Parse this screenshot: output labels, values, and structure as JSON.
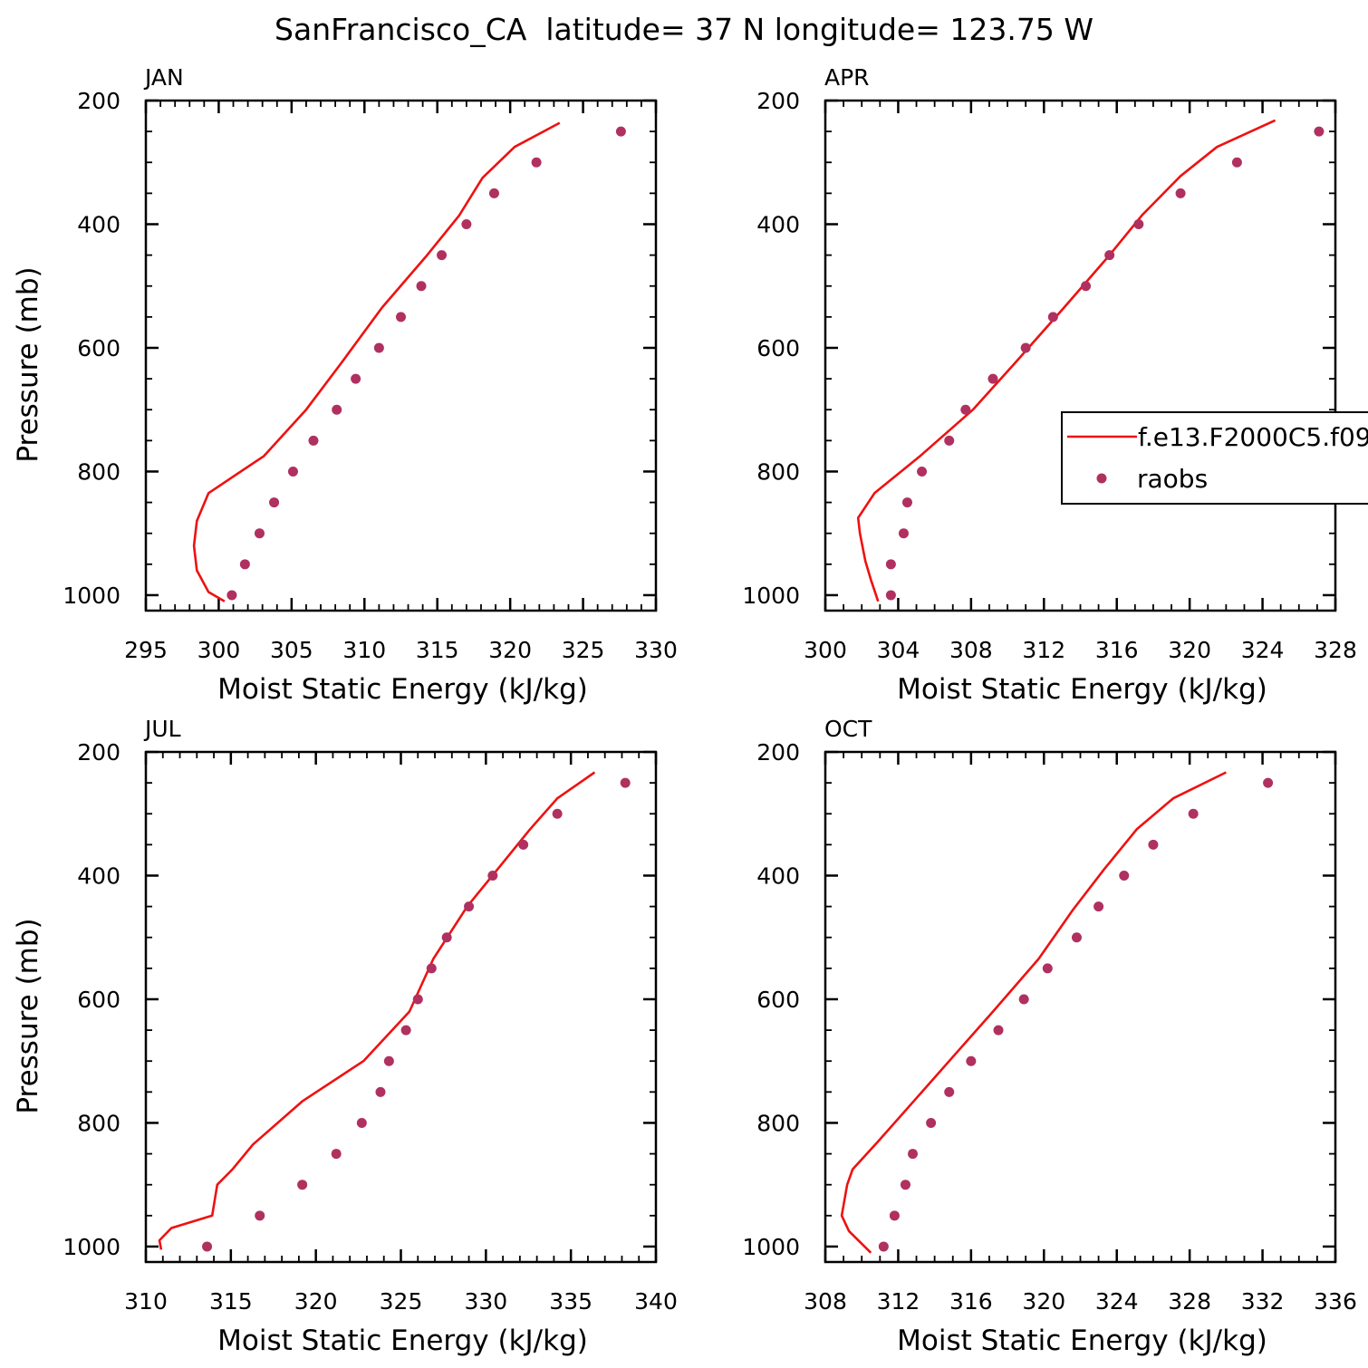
{
  "figure": {
    "title": "SanFrancisco_CA  latitude= 37 N longitude= 123.75 W"
  },
  "legend": {
    "model_label": "f.e13.F2000C5.f09",
    "obs_label": "raobs"
  },
  "colors": {
    "model_line": "#ee1111",
    "obs_marker": "#b03060",
    "axis": "#000000"
  },
  "chart_data": [
    {
      "type": "line",
      "panel": "JAN",
      "xlabel": "Moist Static Energy (kJ/kg)",
      "ylabel": "Pressure (mb)",
      "xlim": [
        295,
        330
      ],
      "ylim": [
        1025,
        200
      ],
      "x_ticks": [
        295,
        300,
        305,
        310,
        315,
        320,
        325,
        330
      ],
      "x_minor_step": 1,
      "y_ticks": [
        200,
        400,
        600,
        800,
        1000
      ],
      "y_minor_step": 50,
      "y_reversed": true,
      "series": [
        {
          "kind": "line",
          "p": [
            236,
            275,
            325,
            386,
            450,
            535,
            625,
            700,
            775,
            835,
            880,
            920,
            960,
            995,
            1010
          ],
          "mse": [
            323.4,
            320.3,
            318.1,
            316.5,
            314.3,
            311.2,
            308.4,
            306.0,
            303.1,
            299.3,
            298.5,
            298.3,
            298.5,
            299.3,
            300.4
          ]
        },
        {
          "kind": "scatter",
          "p": [
            250,
            300,
            350,
            400,
            450,
            500,
            550,
            600,
            650,
            700,
            750,
            800,
            850,
            900,
            950,
            1000
          ],
          "mse": [
            327.6,
            321.8,
            318.9,
            317.0,
            315.3,
            313.9,
            312.5,
            311.0,
            309.4,
            308.1,
            306.5,
            305.1,
            303.8,
            302.8,
            301.8,
            300.9
          ]
        }
      ]
    },
    {
      "type": "line",
      "panel": "APR",
      "xlabel": "Moist Static Energy (kJ/kg)",
      "ylabel": "",
      "xlim": [
        300,
        328
      ],
      "ylim": [
        1025,
        200
      ],
      "x_ticks": [
        300,
        304,
        308,
        312,
        316,
        320,
        324,
        328
      ],
      "x_minor_step": 1,
      "y_ticks": [
        200,
        400,
        600,
        800,
        1000
      ],
      "y_minor_step": 50,
      "y_reversed": true,
      "series": [
        {
          "kind": "line",
          "p": [
            232,
            275,
            322,
            385,
            450,
            535,
            625,
            700,
            775,
            835,
            875,
            900,
            945,
            975,
            1010
          ],
          "mse": [
            324.7,
            321.5,
            319.5,
            317.4,
            315.6,
            313.1,
            310.4,
            308.1,
            305.2,
            302.7,
            301.8,
            301.9,
            302.2,
            302.5,
            302.9
          ]
        },
        {
          "kind": "scatter",
          "p": [
            250,
            300,
            350,
            400,
            450,
            500,
            550,
            600,
            650,
            700,
            750,
            800,
            850,
            900,
            950,
            1000
          ],
          "mse": [
            327.1,
            322.6,
            319.5,
            317.2,
            315.6,
            314.3,
            312.5,
            311.0,
            309.2,
            307.7,
            306.8,
            305.3,
            304.5,
            304.3,
            303.6,
            303.6
          ]
        }
      ]
    },
    {
      "type": "line",
      "panel": "JUL",
      "xlabel": "Moist Static Energy (kJ/kg)",
      "ylabel": "Pressure (mb)",
      "xlim": [
        310,
        340
      ],
      "ylim": [
        1025,
        200
      ],
      "x_ticks": [
        310,
        315,
        320,
        325,
        330,
        335,
        340
      ],
      "x_minor_step": 1,
      "y_ticks": [
        200,
        400,
        600,
        800,
        1000
      ],
      "y_minor_step": 50,
      "y_reversed": true,
      "series": [
        {
          "kind": "line",
          "p": [
            233,
            275,
            325,
            386,
            450,
            535,
            620,
            700,
            765,
            835,
            875,
            900,
            950,
            970,
            990,
            1005
          ],
          "mse": [
            336.4,
            334.2,
            332.6,
            330.8,
            328.9,
            326.9,
            325.5,
            322.8,
            319.2,
            316.3,
            315.1,
            314.2,
            313.9,
            311.5,
            310.8,
            310.9
          ]
        },
        {
          "kind": "scatter",
          "p": [
            250,
            300,
            350,
            400,
            450,
            500,
            550,
            600,
            650,
            700,
            750,
            800,
            850,
            900,
            950,
            1000
          ],
          "mse": [
            338.2,
            334.2,
            332.2,
            330.4,
            329.0,
            327.7,
            326.8,
            326.0,
            325.3,
            324.3,
            323.8,
            322.7,
            321.2,
            319.2,
            316.7,
            313.6
          ]
        }
      ]
    },
    {
      "type": "line",
      "panel": "OCT",
      "xlabel": "Moist Static Energy (kJ/kg)",
      "ylabel": "",
      "xlim": [
        308,
        336
      ],
      "ylim": [
        1025,
        200
      ],
      "x_ticks": [
        308,
        312,
        316,
        320,
        324,
        328,
        332,
        336
      ],
      "x_minor_step": 1,
      "y_ticks": [
        200,
        400,
        600,
        800,
        1000
      ],
      "y_minor_step": 50,
      "y_reversed": true,
      "series": [
        {
          "kind": "line",
          "p": [
            233,
            275,
            325,
            390,
            455,
            535,
            620,
            700,
            760,
            830,
            875,
            900,
            950,
            975,
            1010
          ],
          "mse": [
            330.0,
            327.1,
            325.1,
            323.3,
            321.6,
            319.7,
            317.2,
            314.8,
            313.0,
            310.9,
            309.5,
            309.2,
            308.9,
            309.3,
            310.5
          ]
        },
        {
          "kind": "scatter",
          "p": [
            250,
            300,
            350,
            400,
            450,
            500,
            550,
            600,
            650,
            700,
            750,
            800,
            850,
            900,
            950,
            1000
          ],
          "mse": [
            332.3,
            328.2,
            326.0,
            324.4,
            323.0,
            321.8,
            320.2,
            318.9,
            317.5,
            316.0,
            314.8,
            313.8,
            312.8,
            312.4,
            311.8,
            311.2
          ]
        }
      ]
    }
  ]
}
